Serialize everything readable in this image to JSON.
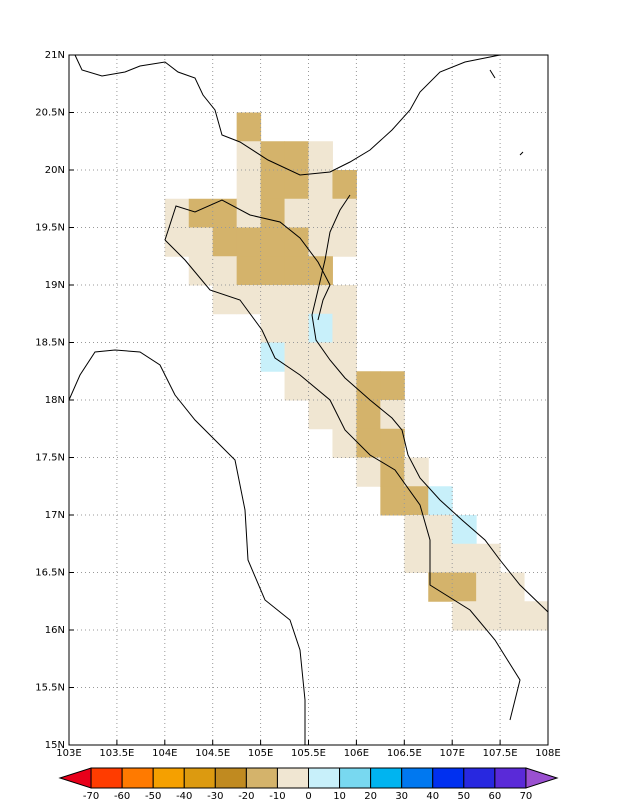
{
  "map": {
    "lonlim": [
      103,
      108
    ],
    "latlim": [
      15,
      21
    ],
    "lonticks": [
      {
        "value": 103,
        "label": "103E"
      },
      {
        "value": 103.5,
        "label": "103.5E"
      },
      {
        "value": 104,
        "label": "104E"
      },
      {
        "value": 104.5,
        "label": "104.5E"
      },
      {
        "value": 105,
        "label": "105E"
      },
      {
        "value": 105.5,
        "label": "105.5E"
      },
      {
        "value": 106,
        "label": "106E"
      },
      {
        "value": 106.5,
        "label": "106.5E"
      },
      {
        "value": 107,
        "label": "107E"
      },
      {
        "value": 107.5,
        "label": "107.5E"
      },
      {
        "value": 108,
        "label": "108E"
      }
    ],
    "latticks": [
      {
        "value": 15,
        "label": "15N"
      },
      {
        "value": 15.5,
        "label": "15.5N"
      },
      {
        "value": 16,
        "label": "16N"
      },
      {
        "value": 16.5,
        "label": "16.5N"
      },
      {
        "value": 17,
        "label": "17N"
      },
      {
        "value": 17.5,
        "label": "17.5N"
      },
      {
        "value": 18,
        "label": "18N"
      },
      {
        "value": 18.5,
        "label": "18.5N"
      },
      {
        "value": 19,
        "label": "19N"
      },
      {
        "value": 19.5,
        "label": "19.5N"
      },
      {
        "value": 20,
        "label": "20N"
      },
      {
        "value": 20.5,
        "label": "20.5N"
      },
      {
        "value": 21,
        "label": "21N"
      }
    ],
    "grid": true,
    "grid_step": 0.25,
    "levels": [
      -70,
      -60,
      -50,
      -40,
      -30,
      -20,
      -10,
      0,
      10,
      20,
      30,
      40,
      50,
      60,
      70
    ],
    "colors": [
      "#e8001a",
      "#ff3c00",
      "#ff7a00",
      "#f5a000",
      "#dc9a10",
      "#c08a20",
      "#d4b36b",
      "#f0e6d2",
      "#c8f0fa",
      "#78d8f0",
      "#00b4f0",
      "#0078f0",
      "#0030f0",
      "#2828e0",
      "#5a2ad8",
      "#9a50d0"
    ],
    "cells": [
      [
        104.75,
        20.25,
        -15
      ],
      [
        104.75,
        20,
        -5
      ],
      [
        105,
        20,
        -15
      ],
      [
        105.25,
        20,
        -15
      ],
      [
        105.5,
        20,
        -5
      ],
      [
        104.75,
        19.75,
        -5
      ],
      [
        105,
        19.75,
        -15
      ],
      [
        105.25,
        19.75,
        -15
      ],
      [
        105.5,
        19.75,
        -5
      ],
      [
        105.75,
        19.75,
        -15
      ],
      [
        104,
        19.5,
        -5
      ],
      [
        104.25,
        19.5,
        -15
      ],
      [
        104.5,
        19.5,
        -15
      ],
      [
        104.75,
        19.5,
        -5
      ],
      [
        105,
        19.5,
        -15
      ],
      [
        105.25,
        19.5,
        -5
      ],
      [
        105.5,
        19.5,
        -5
      ],
      [
        105.75,
        19.5,
        -5
      ],
      [
        104,
        19.25,
        -5
      ],
      [
        104.25,
        19.25,
        -5
      ],
      [
        104.5,
        19.25,
        -15
      ],
      [
        104.75,
        19.25,
        -15
      ],
      [
        105,
        19.25,
        -15
      ],
      [
        105.25,
        19.25,
        -15
      ],
      [
        105.5,
        19.25,
        -5
      ],
      [
        105.75,
        19.25,
        -5
      ],
      [
        104.25,
        19,
        -5
      ],
      [
        104.5,
        19,
        -5
      ],
      [
        104.75,
        19,
        -15
      ],
      [
        105,
        19,
        -15
      ],
      [
        105.25,
        19,
        -15
      ],
      [
        105.5,
        19,
        -15
      ],
      [
        104.5,
        18.75,
        -5
      ],
      [
        104.75,
        18.75,
        -5
      ],
      [
        105,
        18.75,
        -5
      ],
      [
        105.25,
        18.75,
        -5
      ],
      [
        105.5,
        18.75,
        -5
      ],
      [
        105.75,
        18.75,
        -5
      ],
      [
        105,
        18.5,
        -5
      ],
      [
        105.25,
        18.5,
        -5
      ],
      [
        105.5,
        18.5,
        5
      ],
      [
        105.75,
        18.5,
        -5
      ],
      [
        105,
        18.25,
        5
      ],
      [
        105.25,
        18.25,
        -5
      ],
      [
        105.5,
        18.25,
        -5
      ],
      [
        105.75,
        18.25,
        -5
      ],
      [
        105.25,
        18,
        -5
      ],
      [
        105.5,
        18,
        -5
      ],
      [
        105.75,
        18,
        -5
      ],
      [
        106,
        18,
        -15
      ],
      [
        106.25,
        18,
        -15
      ],
      [
        105.5,
        17.75,
        -5
      ],
      [
        105.75,
        17.75,
        -5
      ],
      [
        106,
        17.75,
        -15
      ],
      [
        106.25,
        17.75,
        -5
      ],
      [
        105.75,
        17.5,
        -5
      ],
      [
        106,
        17.5,
        -15
      ],
      [
        106.25,
        17.5,
        -15
      ],
      [
        106,
        17.25,
        -5
      ],
      [
        106.25,
        17.25,
        -15
      ],
      [
        106.5,
        17.25,
        -5
      ],
      [
        106.25,
        17,
        -15
      ],
      [
        106.5,
        17,
        -15
      ],
      [
        106.75,
        17,
        5
      ],
      [
        106.5,
        16.75,
        -5
      ],
      [
        106.75,
        16.75,
        -5
      ],
      [
        107,
        16.75,
        5
      ],
      [
        106.5,
        16.5,
        -5
      ],
      [
        106.75,
        16.5,
        -5
      ],
      [
        107,
        16.5,
        -5
      ],
      [
        107.25,
        16.5,
        -5
      ],
      [
        106.75,
        16.25,
        -15
      ],
      [
        107,
        16.25,
        -15
      ],
      [
        107.25,
        16.25,
        -5
      ],
      [
        107.5,
        16.25,
        -5
      ],
      [
        107,
        16,
        -5
      ],
      [
        107.25,
        16,
        -5
      ],
      [
        107.5,
        16,
        -5
      ],
      [
        107.75,
        16,
        -5
      ]
    ]
  }
}
